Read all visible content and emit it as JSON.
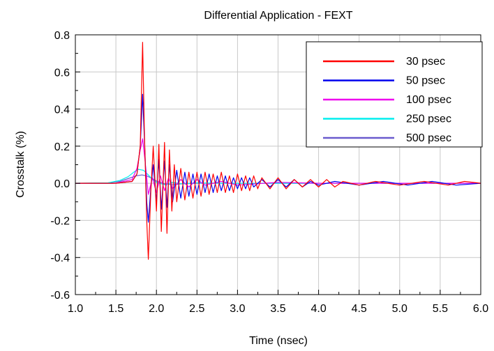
{
  "chart_data": {
    "type": "line",
    "title": "Differential Application - FEXT",
    "xlabel": "Time (nsec)",
    "ylabel": "Crosstalk (%)",
    "xlim": [
      1.0,
      6.0
    ],
    "ylim": [
      -0.6,
      0.8
    ],
    "xticks": [
      "1.0",
      "1.5",
      "2.0",
      "2.5",
      "3.0",
      "3.5",
      "4.0",
      "4.5",
      "5.0",
      "5.5",
      "6.0"
    ],
    "yticks": [
      "0.8",
      "0.6",
      "0.4",
      "0.2",
      "0.0",
      "-0.2",
      "-0.4",
      "-0.6"
    ],
    "grid": true,
    "legend_position": "top-right",
    "series": [
      {
        "name": "30 psec",
        "color": "#ff0000",
        "x": [
          1.0,
          1.5,
          1.7,
          1.76,
          1.8,
          1.83,
          1.85,
          1.88,
          1.9,
          1.93,
          1.96,
          2.0,
          2.03,
          2.06,
          2.1,
          2.13,
          2.16,
          2.19,
          2.22,
          2.25,
          2.3,
          2.35,
          2.4,
          2.45,
          2.5,
          2.55,
          2.6,
          2.65,
          2.7,
          2.75,
          2.8,
          2.85,
          2.9,
          2.95,
          3.0,
          3.05,
          3.1,
          3.15,
          3.2,
          3.25,
          3.3,
          3.4,
          3.5,
          3.6,
          3.7,
          3.8,
          3.9,
          4.0,
          4.1,
          4.2,
          4.3,
          4.5,
          4.7,
          5.0,
          5.3,
          5.6,
          5.8,
          6.0
        ],
        "y": [
          0,
          0,
          0.01,
          0.05,
          0.2,
          0.76,
          0.3,
          -0.2,
          -0.41,
          -0.05,
          0.2,
          -0.15,
          0.21,
          -0.26,
          0.22,
          -0.27,
          0.18,
          -0.15,
          0.1,
          -0.1,
          0.08,
          -0.09,
          0.06,
          -0.08,
          0.06,
          -0.07,
          0.06,
          -0.06,
          0.05,
          -0.05,
          0.06,
          -0.05,
          0.04,
          -0.05,
          0.05,
          -0.04,
          0.04,
          -0.04,
          0.04,
          -0.03,
          0.03,
          -0.03,
          0.03,
          -0.03,
          0.02,
          -0.02,
          0.02,
          -0.02,
          0.02,
          -0.02,
          0.01,
          -0.01,
          0.01,
          -0.01,
          0.01,
          -0.01,
          0.01,
          0
        ]
      },
      {
        "name": "50 psec",
        "color": "#0000ee",
        "x": [
          1.0,
          1.5,
          1.7,
          1.76,
          1.8,
          1.83,
          1.86,
          1.88,
          1.9,
          1.93,
          1.96,
          2.0,
          2.03,
          2.06,
          2.1,
          2.13,
          2.16,
          2.2,
          2.25,
          2.3,
          2.35,
          2.4,
          2.45,
          2.5,
          2.55,
          2.6,
          2.65,
          2.7,
          2.75,
          2.8,
          2.85,
          2.9,
          2.95,
          3.0,
          3.05,
          3.1,
          3.15,
          3.2,
          3.3,
          3.4,
          3.5,
          3.6,
          3.7,
          3.8,
          3.9,
          4.0,
          4.2,
          4.5,
          4.8,
          5.1,
          5.4,
          5.7,
          6.0
        ],
        "y": [
          0,
          0,
          0.01,
          0.05,
          0.2,
          0.48,
          0.15,
          -0.1,
          -0.21,
          -0.03,
          0.1,
          -0.1,
          0.13,
          -0.14,
          0.12,
          -0.13,
          0.1,
          -0.1,
          0.07,
          -0.08,
          0.06,
          -0.07,
          0.05,
          -0.06,
          0.05,
          -0.05,
          0.05,
          -0.05,
          0.04,
          -0.04,
          0.04,
          -0.04,
          0.03,
          -0.03,
          0.03,
          -0.03,
          0.03,
          -0.02,
          0.02,
          -0.02,
          0.02,
          -0.02,
          0.02,
          -0.02,
          0.01,
          -0.01,
          0.01,
          -0.01,
          0.01,
          -0.01,
          0.01,
          -0.01,
          0
        ]
      },
      {
        "name": "100 psec",
        "color": "#ee00ee",
        "x": [
          1.0,
          1.5,
          1.7,
          1.76,
          1.8,
          1.83,
          1.86,
          1.9,
          1.95,
          2.0,
          2.05,
          2.1,
          2.15,
          2.2,
          2.3,
          2.4,
          2.5,
          2.6,
          2.8,
          3.0,
          3.5,
          4.0,
          5.0,
          6.0
        ],
        "y": [
          0,
          0,
          0.02,
          0.08,
          0.18,
          0.24,
          0.12,
          -0.06,
          0.03,
          -0.05,
          0.04,
          -0.04,
          0.03,
          -0.03,
          0.02,
          -0.02,
          0.02,
          -0.01,
          0.01,
          -0.01,
          0.005,
          0,
          0,
          0
        ]
      },
      {
        "name": "250 psec",
        "color": "#00eeee",
        "x": [
          1.0,
          1.4,
          1.55,
          1.65,
          1.72,
          1.78,
          1.84,
          1.9,
          1.95,
          2.0,
          2.1,
          2.2,
          2.3,
          2.5,
          3.0,
          4.0,
          5.0,
          6.0
        ],
        "y": [
          0,
          0.002,
          0.015,
          0.035,
          0.06,
          0.075,
          0.07,
          0.045,
          0.02,
          0.005,
          -0.008,
          0.005,
          -0.003,
          0.002,
          0,
          0,
          0,
          0
        ]
      },
      {
        "name": "500 psec",
        "color": "#6a5acd",
        "x": [
          1.0,
          1.4,
          1.55,
          1.65,
          1.75,
          1.82,
          1.88,
          1.95,
          2.0,
          2.1,
          2.2,
          2.3,
          2.5,
          3.0,
          4.0,
          5.0,
          6.0
        ],
        "y": [
          0,
          0.002,
          0.01,
          0.025,
          0.04,
          0.045,
          0.04,
          0.025,
          0.012,
          -0.003,
          -0.008,
          -0.004,
          0,
          0,
          0,
          0,
          0
        ]
      }
    ]
  }
}
